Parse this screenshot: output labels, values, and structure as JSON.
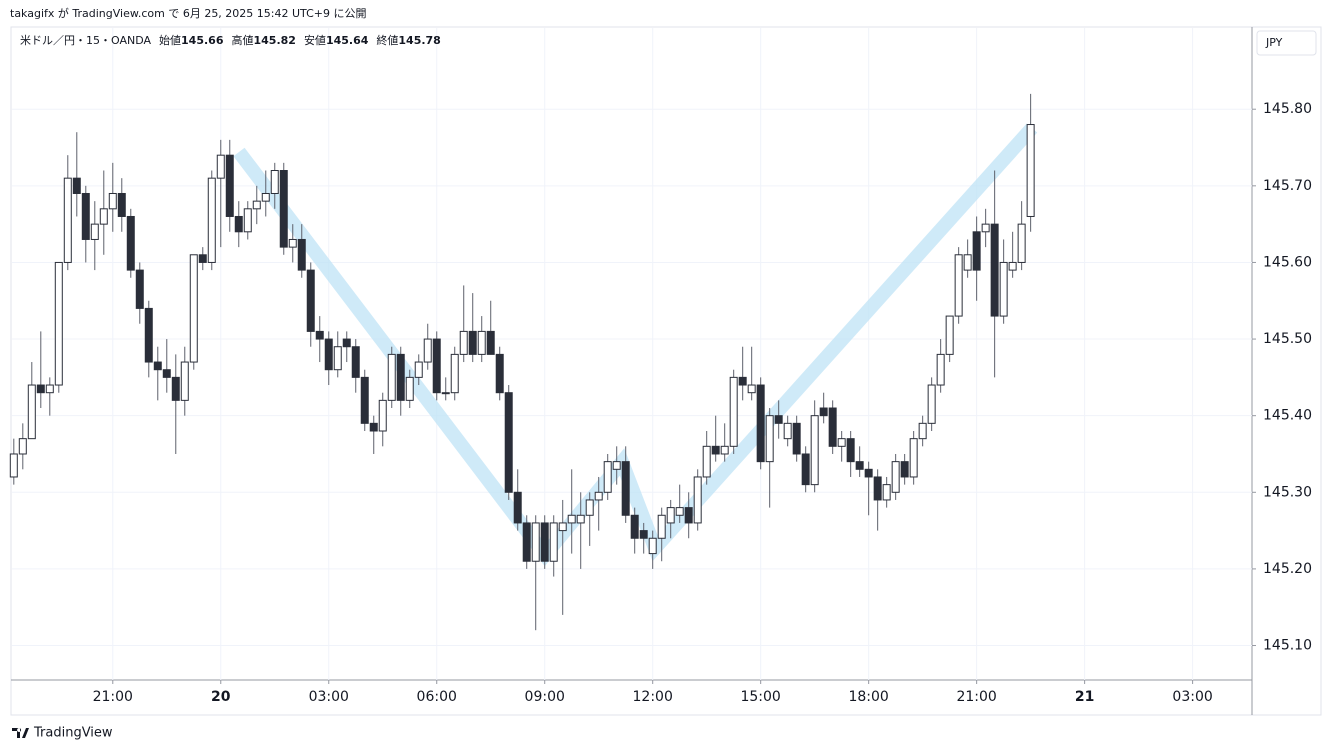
{
  "header": {
    "text": "takagifx が TradingView.com で 6月 25, 2025 15:42 UTC+9 に公開"
  },
  "chart_data": {
    "type": "candlestick",
    "symbol": "米ドル／円・15・OANDA",
    "legend_labels": {
      "open": "始値",
      "high": "高値",
      "low": "安値",
      "close": "終値"
    },
    "currency": "JPY",
    "up_color": "#ffffff",
    "down_color": "#2a2e39",
    "wick_color": "#5d606b",
    "open": [
      145.32,
      145.35,
      145.37,
      145.44,
      145.43,
      145.44,
      145.6,
      145.71,
      145.69,
      145.63,
      145.65,
      145.67,
      145.69,
      145.66,
      145.59,
      145.54,
      145.47,
      145.46,
      145.45,
      145.42,
      145.47,
      145.61,
      145.6,
      145.71,
      145.74,
      145.66,
      145.64,
      145.67,
      145.68,
      145.69,
      145.72,
      145.62,
      145.63,
      145.59,
      145.51,
      145.5,
      145.46,
      145.5,
      145.49,
      145.45,
      145.39,
      145.38,
      145.42,
      145.48,
      145.42,
      145.45,
      145.47,
      145.5,
      145.43,
      145.43,
      145.48,
      145.51,
      145.48,
      145.51,
      145.48,
      145.43,
      145.3,
      145.26,
      145.21,
      145.26,
      145.21,
      145.25,
      145.26,
      145.26,
      145.27,
      145.29,
      145.3,
      145.33,
      145.34,
      145.27,
      145.25,
      145.22,
      145.24,
      145.26,
      145.27,
      145.28,
      145.26,
      145.32,
      145.36,
      145.35,
      145.36,
      145.45,
      145.43,
      145.44,
      145.34,
      145.4,
      145.37,
      145.39,
      145.35,
      145.31,
      145.41,
      145.41,
      145.36,
      145.37,
      145.34,
      145.33,
      145.32,
      145.29,
      145.3,
      145.34,
      145.32,
      145.37,
      145.39,
      145.44,
      145.48,
      145.53,
      145.59,
      145.64,
      145.64,
      145.65,
      145.53,
      145.59,
      145.6,
      145.66
    ],
    "high": [
      145.37,
      145.39,
      145.47,
      145.51,
      145.45,
      145.6,
      145.74,
      145.77,
      145.7,
      145.68,
      145.72,
      145.73,
      145.71,
      145.67,
      145.6,
      145.55,
      145.49,
      145.5,
      145.48,
      145.49,
      145.61,
      145.62,
      145.72,
      145.76,
      145.76,
      145.68,
      145.68,
      145.7,
      145.72,
      145.73,
      145.73,
      145.65,
      145.65,
      145.6,
      145.53,
      145.51,
      145.51,
      145.51,
      145.5,
      145.46,
      145.4,
      145.43,
      145.49,
      145.49,
      145.46,
      145.48,
      145.52,
      145.51,
      145.45,
      145.49,
      145.57,
      145.56,
      145.53,
      145.55,
      145.49,
      145.44,
      145.33,
      145.27,
      145.27,
      145.27,
      145.27,
      145.29,
      145.33,
      145.3,
      145.3,
      145.32,
      145.35,
      145.36,
      145.36,
      145.28,
      145.26,
      145.25,
      145.28,
      145.29,
      145.31,
      145.3,
      145.33,
      145.38,
      145.4,
      145.39,
      145.46,
      145.49,
      145.49,
      145.45,
      145.41,
      145.42,
      145.4,
      145.4,
      145.36,
      145.42,
      145.43,
      145.42,
      145.38,
      145.38,
      145.36,
      145.34,
      145.33,
      145.32,
      145.35,
      145.35,
      145.38,
      145.4,
      145.45,
      145.5,
      145.53,
      145.62,
      145.63,
      145.66,
      145.67,
      145.72,
      145.63,
      145.64,
      145.68,
      145.82
    ],
    "low": [
      145.31,
      145.33,
      145.37,
      145.41,
      145.4,
      145.43,
      145.59,
      145.66,
      145.6,
      145.59,
      145.61,
      145.64,
      145.64,
      145.58,
      145.52,
      145.45,
      145.42,
      145.43,
      145.35,
      145.4,
      145.46,
      145.59,
      145.59,
      145.62,
      145.64,
      145.62,
      145.63,
      145.65,
      145.66,
      145.67,
      145.61,
      145.6,
      145.58,
      145.49,
      145.47,
      145.44,
      145.45,
      145.47,
      145.43,
      145.38,
      145.35,
      145.36,
      145.41,
      145.4,
      145.41,
      145.44,
      145.46,
      145.42,
      145.42,
      145.42,
      145.47,
      145.47,
      145.47,
      145.48,
      145.42,
      145.29,
      145.25,
      145.2,
      145.12,
      145.2,
      145.19,
      145.14,
      145.22,
      145.2,
      145.23,
      145.25,
      145.29,
      145.31,
      145.26,
      145.22,
      145.22,
      145.2,
      145.21,
      145.24,
      145.26,
      145.24,
      145.25,
      145.31,
      145.34,
      145.34,
      145.35,
      145.42,
      145.42,
      145.33,
      145.28,
      145.37,
      145.36,
      145.34,
      145.3,
      145.3,
      145.39,
      145.35,
      145.34,
      145.32,
      145.32,
      145.27,
      145.25,
      145.28,
      145.29,
      145.31,
      145.31,
      145.36,
      145.38,
      145.43,
      145.47,
      145.52,
      145.58,
      145.55,
      145.62,
      145.45,
      145.52,
      145.58,
      145.59,
      145.64
    ],
    "close": [
      145.35,
      145.37,
      145.44,
      145.43,
      145.44,
      145.6,
      145.71,
      145.69,
      145.63,
      145.65,
      145.67,
      145.69,
      145.66,
      145.59,
      145.54,
      145.47,
      145.46,
      145.45,
      145.42,
      145.47,
      145.61,
      145.6,
      145.71,
      145.74,
      145.66,
      145.64,
      145.67,
      145.68,
      145.69,
      145.72,
      145.62,
      145.63,
      145.59,
      145.51,
      145.5,
      145.46,
      145.49,
      145.49,
      145.45,
      145.39,
      145.38,
      145.42,
      145.48,
      145.42,
      145.45,
      145.47,
      145.5,
      145.43,
      145.43,
      145.48,
      145.51,
      145.48,
      145.51,
      145.48,
      145.43,
      145.3,
      145.26,
      145.21,
      145.26,
      145.21,
      145.26,
      145.26,
      145.27,
      145.27,
      145.29,
      145.3,
      145.34,
      145.34,
      145.27,
      145.24,
      145.24,
      145.24,
      145.27,
      145.28,
      145.28,
      145.26,
      145.32,
      145.36,
      145.35,
      145.36,
      145.45,
      145.44,
      145.44,
      145.34,
      145.4,
      145.39,
      145.39,
      145.35,
      145.31,
      145.4,
      145.4,
      145.36,
      145.37,
      145.34,
      145.33,
      145.32,
      145.29,
      145.31,
      145.34,
      145.32,
      145.37,
      145.39,
      145.44,
      145.48,
      145.53,
      145.61,
      145.61,
      145.59,
      145.65,
      145.53,
      145.6,
      145.6,
      145.65,
      145.78
    ],
    "xlim": [
      -0.2,
      137.6
    ],
    "xticks": [
      {
        "value": 11,
        "label": "21:00"
      },
      {
        "value": 23,
        "label": "20"
      },
      {
        "value": 35,
        "label": "03:00"
      },
      {
        "value": 47,
        "label": "06:00"
      },
      {
        "value": 59,
        "label": "09:00"
      },
      {
        "value": 71,
        "label": "12:00"
      },
      {
        "value": 83,
        "label": "15:00"
      },
      {
        "value": 95,
        "label": "18:00"
      },
      {
        "value": 107,
        "label": "21:00"
      },
      {
        "value": 119,
        "label": "21"
      },
      {
        "value": 131,
        "label": "03:00"
      }
    ],
    "ylim": [
      145.055,
      145.906
    ],
    "yticks": [
      {
        "value": 145.1,
        "label": "145.10"
      },
      {
        "value": 145.2,
        "label": "145.20"
      },
      {
        "value": 145.3,
        "label": "145.30"
      },
      {
        "value": 145.4,
        "label": "145.40"
      },
      {
        "value": 145.5,
        "label": "145.50"
      },
      {
        "value": 145.6,
        "label": "145.60"
      },
      {
        "value": 145.7,
        "label": "145.70"
      },
      {
        "value": 145.8,
        "label": "145.80"
      }
    ],
    "grid": true
  },
  "footer": {
    "logo_text": "TradingView"
  }
}
